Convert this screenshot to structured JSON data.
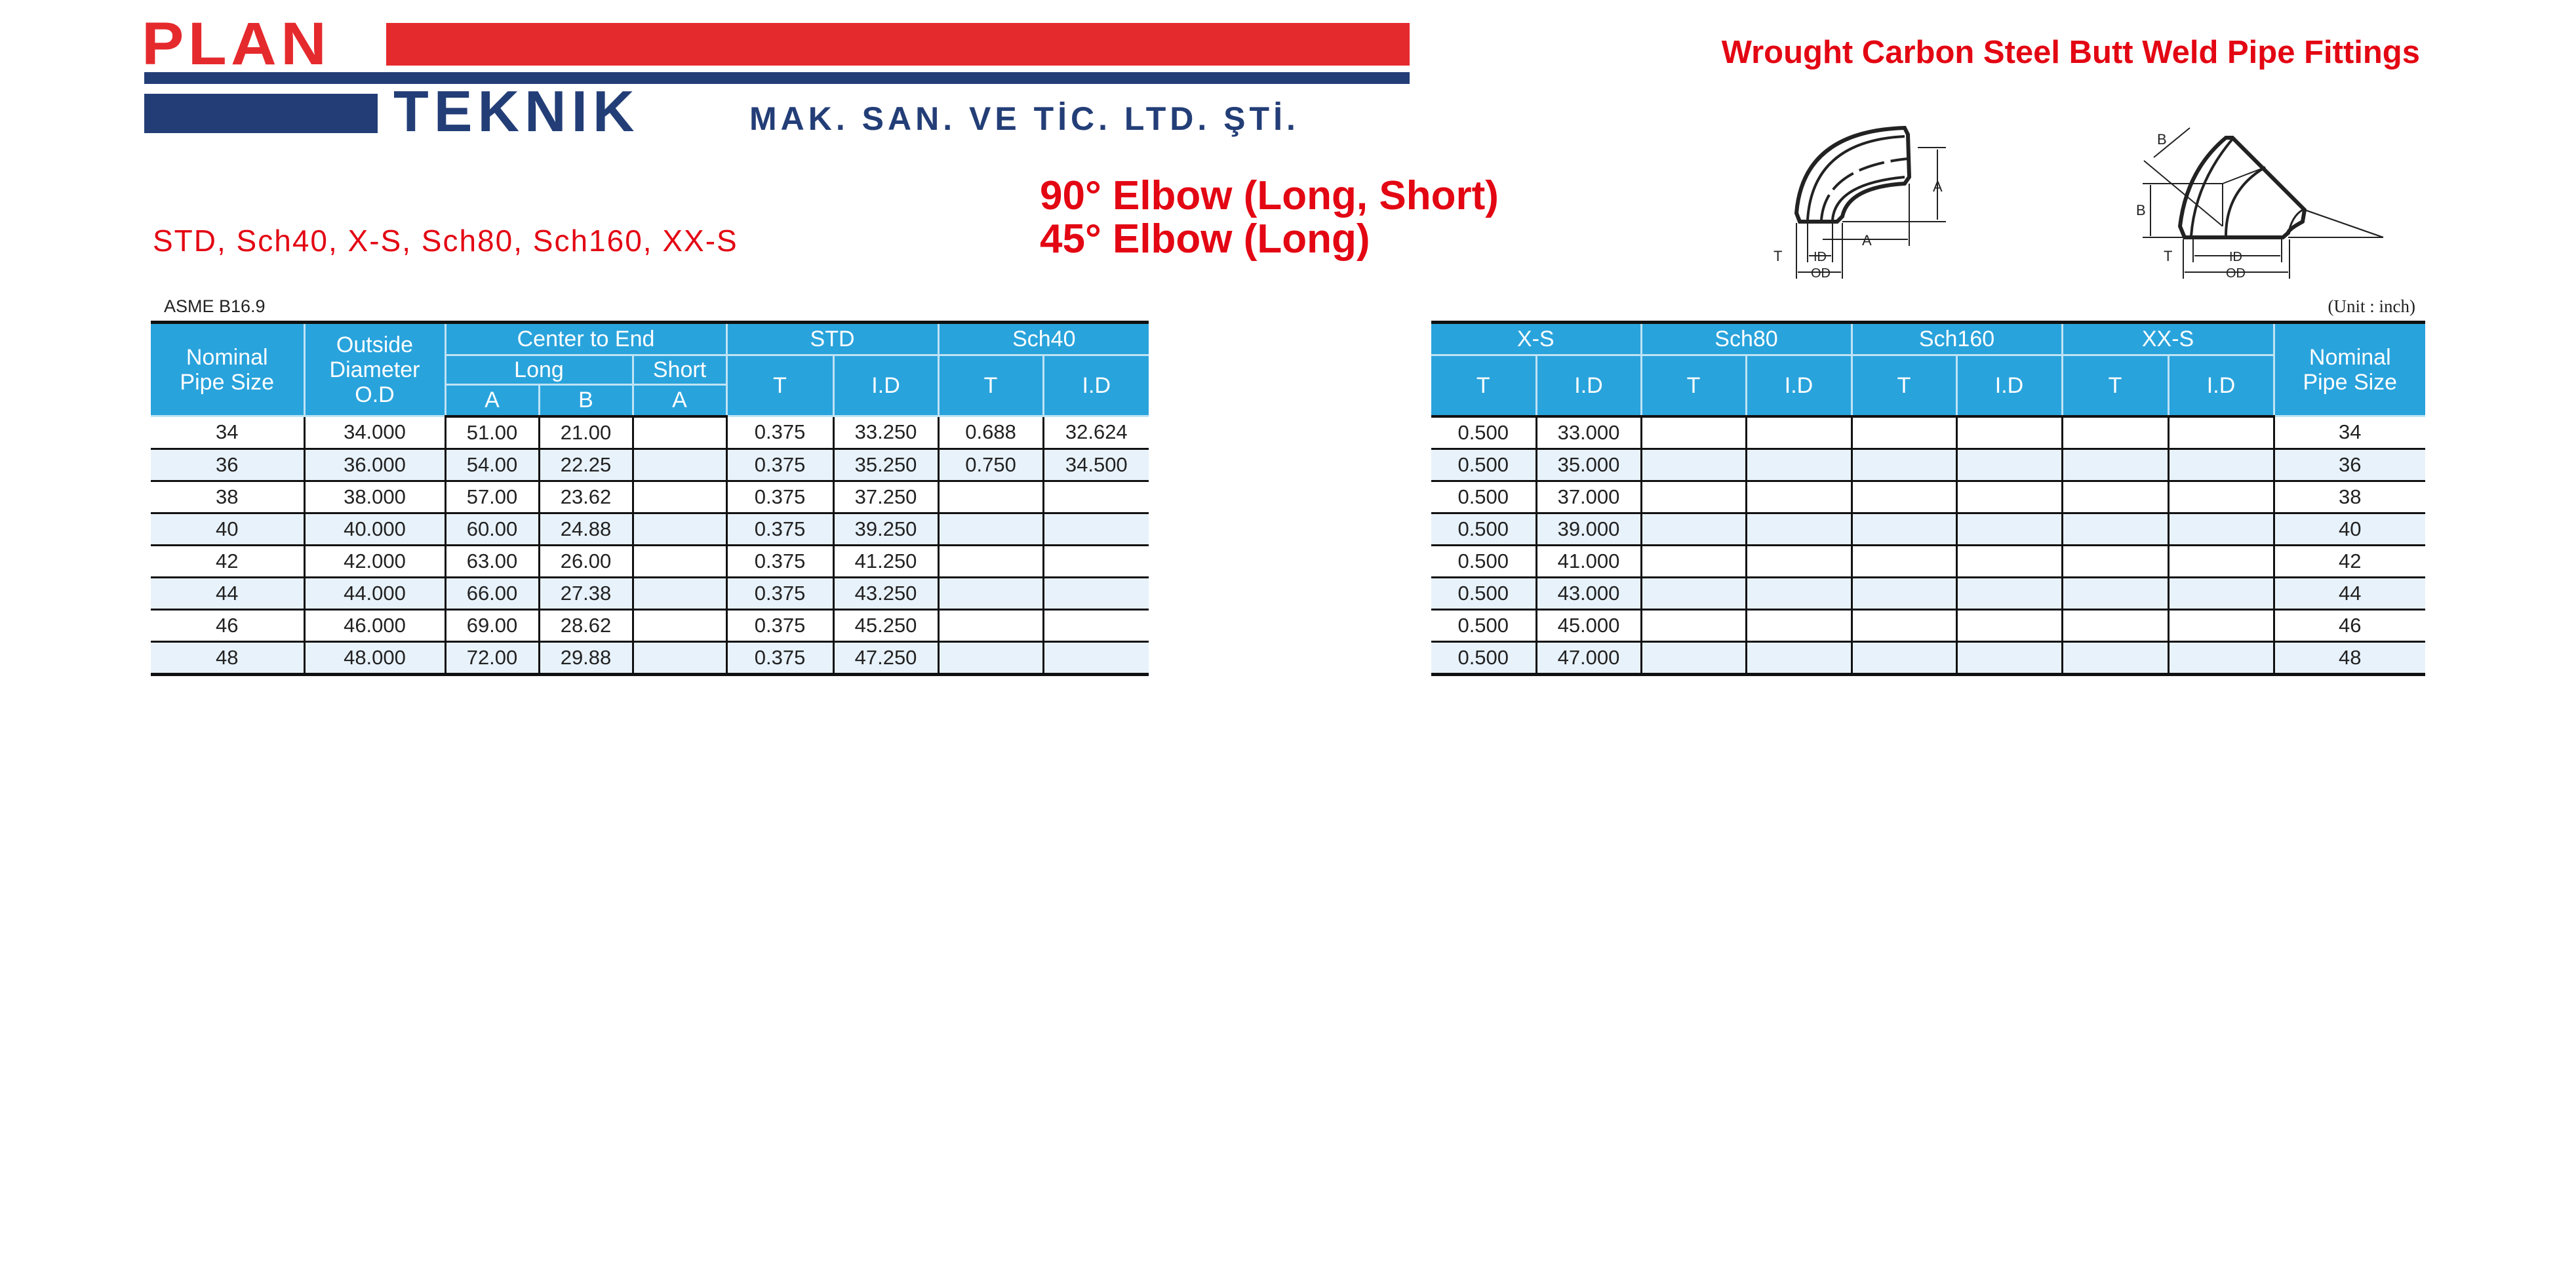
{
  "logo": {
    "line1": "PLAN",
    "line2": "TEKNIK",
    "company_suffix": "MAK. SAN. VE TİC. LTD. ŞTİ."
  },
  "header": {
    "title": "Wrought Carbon Steel Butt Weld Pipe Fittings",
    "product_line1": "90° Elbow (Long, Short)",
    "product_line2": "45° Elbow (Long)",
    "schedules": "STD, Sch40, X-S, Sch80, Sch160, XX-S",
    "standard": "ASME B16.9",
    "unit": "(Unit : inch)"
  },
  "diagrams": {
    "elbow90_labels": {
      "t": "T",
      "id": "ID",
      "od": "OD",
      "a": "A"
    },
    "elbow45_labels": {
      "t": "T",
      "id": "ID",
      "od": "OD",
      "b": "B"
    }
  },
  "colors": {
    "brand_red": "#e52a2e",
    "brand_navy": "#233e77",
    "title_red": "#e30613",
    "header_blue": "#29a3dc",
    "row_alt": "#e8f2fb"
  },
  "left_table": {
    "headers": {
      "nps": "Nominal Pipe Size",
      "od_line1": "Outside",
      "od_line2": "Diameter",
      "od_line3": "O.D",
      "center_to_end": "Center to End",
      "long": "Long",
      "short": "Short",
      "a": "A",
      "b": "B",
      "short_a": "A",
      "std": "STD",
      "sch40": "Sch40",
      "t": "T",
      "id": "I.D"
    },
    "rows": [
      [
        "34",
        "34.000",
        "51.00",
        "21.00",
        "",
        "0.375",
        "33.250",
        "0.688",
        "32.624"
      ],
      [
        "36",
        "36.000",
        "54.00",
        "22.25",
        "",
        "0.375",
        "35.250",
        "0.750",
        "34.500"
      ],
      [
        "38",
        "38.000",
        "57.00",
        "23.62",
        "",
        "0.375",
        "37.250",
        "",
        ""
      ],
      [
        "40",
        "40.000",
        "60.00",
        "24.88",
        "",
        "0.375",
        "39.250",
        "",
        ""
      ],
      [
        "42",
        "42.000",
        "63.00",
        "26.00",
        "",
        "0.375",
        "41.250",
        "",
        ""
      ],
      [
        "44",
        "44.000",
        "66.00",
        "27.38",
        "",
        "0.375",
        "43.250",
        "",
        ""
      ],
      [
        "46",
        "46.000",
        "69.00",
        "28.62",
        "",
        "0.375",
        "45.250",
        "",
        ""
      ],
      [
        "48",
        "48.000",
        "72.00",
        "29.88",
        "",
        "0.375",
        "47.250",
        "",
        ""
      ]
    ]
  },
  "right_table": {
    "headers": {
      "xs": "X-S",
      "sch80": "Sch80",
      "sch160": "Sch160",
      "xxs": "XX-S",
      "nps": "Nominal Pipe Size",
      "t": "T",
      "id": "I.D"
    },
    "rows": [
      [
        "0.500",
        "33.000",
        "",
        "",
        "",
        "",
        "",
        "",
        "34"
      ],
      [
        "0.500",
        "35.000",
        "",
        "",
        "",
        "",
        "",
        "",
        "36"
      ],
      [
        "0.500",
        "37.000",
        "",
        "",
        "",
        "",
        "",
        "",
        "38"
      ],
      [
        "0.500",
        "39.000",
        "",
        "",
        "",
        "",
        "",
        "",
        "40"
      ],
      [
        "0.500",
        "41.000",
        "",
        "",
        "",
        "",
        "",
        "",
        "42"
      ],
      [
        "0.500",
        "43.000",
        "",
        "",
        "",
        "",
        "",
        "",
        "44"
      ],
      [
        "0.500",
        "45.000",
        "",
        "",
        "",
        "",
        "",
        "",
        "46"
      ],
      [
        "0.500",
        "47.000",
        "",
        "",
        "",
        "",
        "",
        "",
        "48"
      ]
    ]
  }
}
